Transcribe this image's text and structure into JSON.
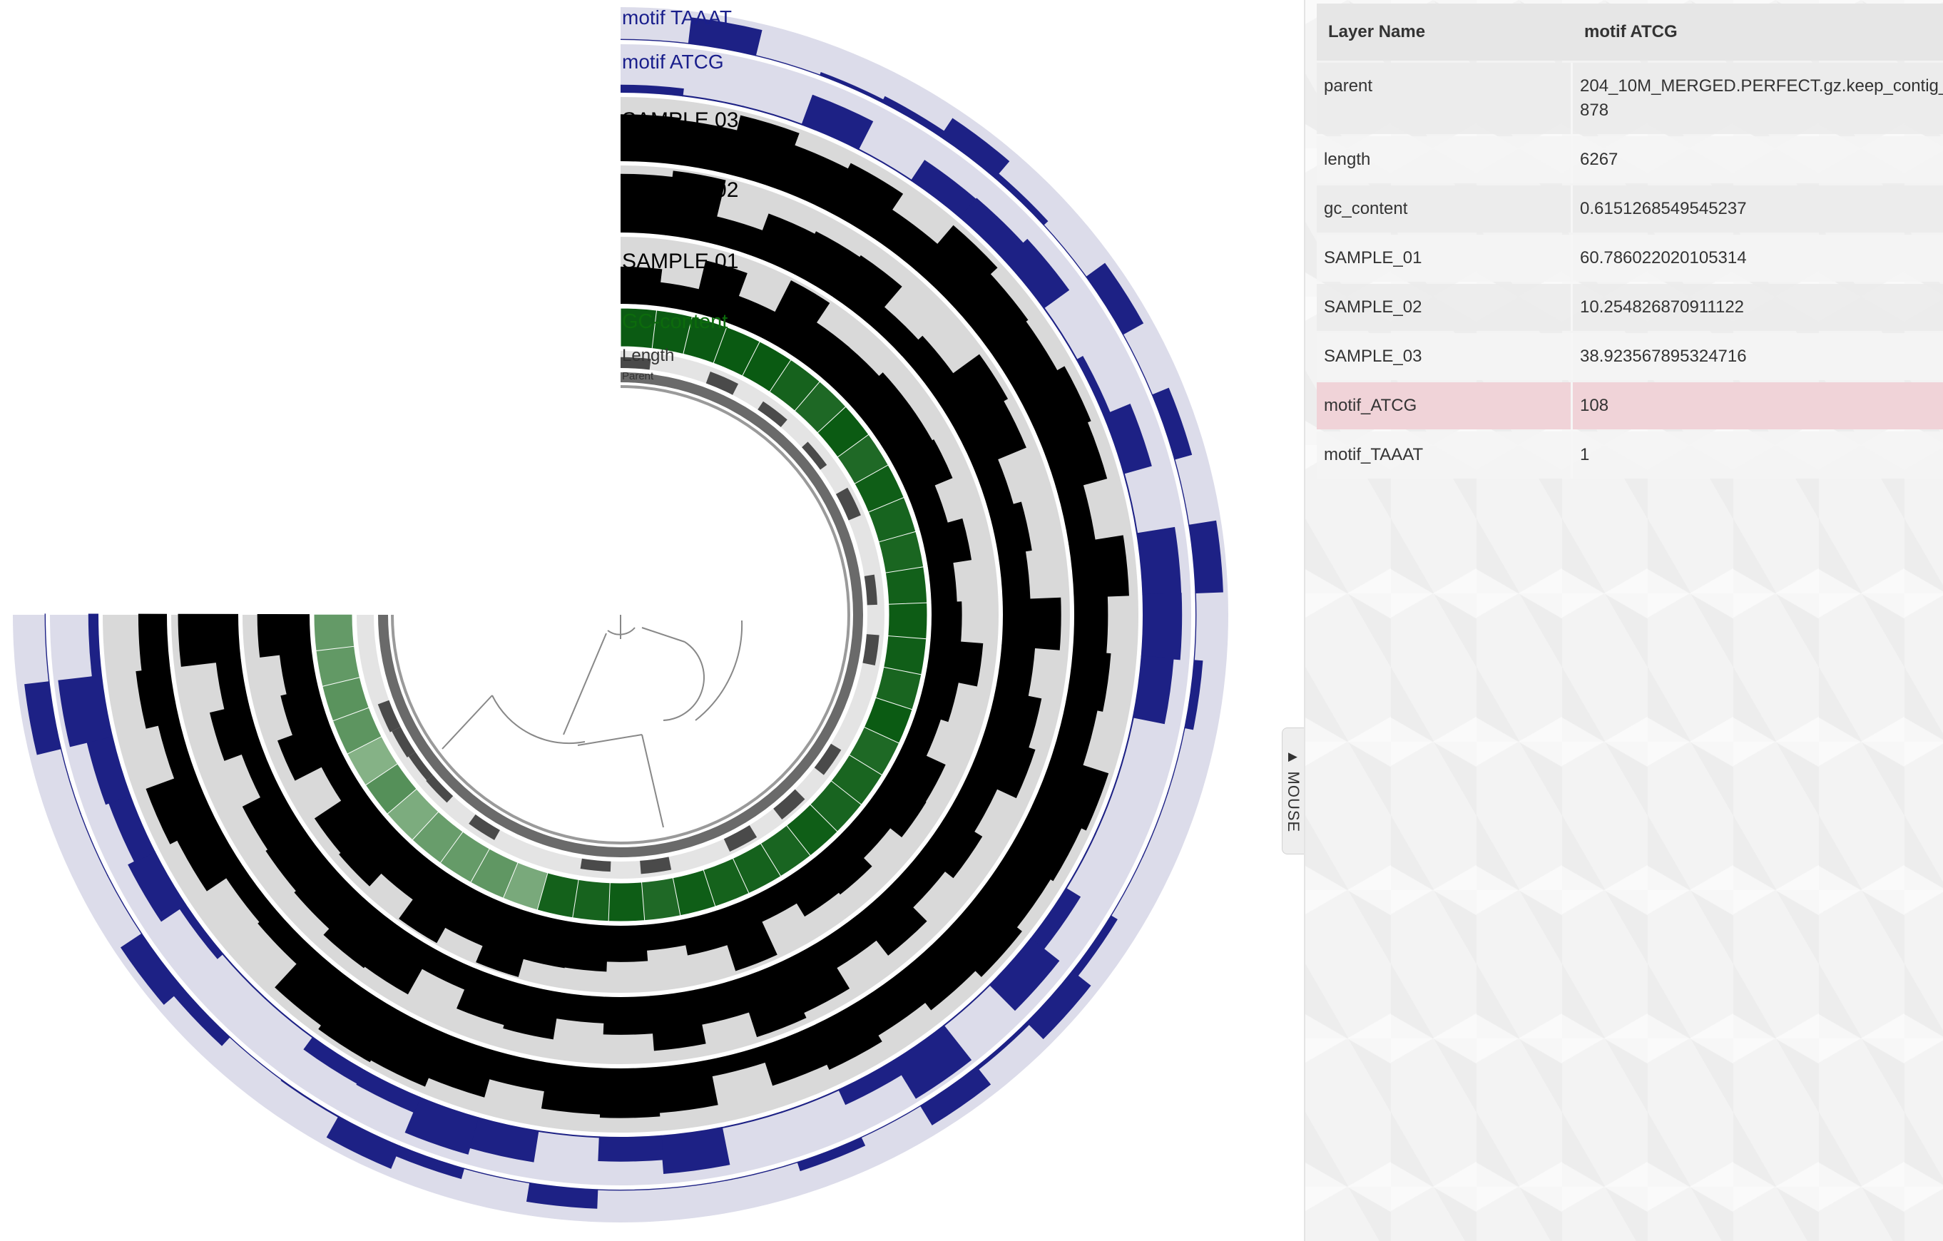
{
  "layers": {
    "motif_taaat": "motif TAAAT",
    "motif_atcg": "motif ATCG",
    "sample_03": "SAMPLE 03",
    "sample_02": "SAMPLE 02",
    "sample_01": "SAMPLE 01",
    "gc_content": "GC-content",
    "length": "Length",
    "parent": "Parent"
  },
  "colors": {
    "motif_bg": "#dcdcea",
    "motif_bar": "#1d2185",
    "motif_label": "#1a1f8c",
    "sample_bg": "#d9d9d9",
    "sample_bar": "#000000",
    "gc_dark": "#0a5a12",
    "gc_light": "#7fb07f",
    "gc_label": "#0c6b0c",
    "length_bar": "#4a4a4a",
    "parent_ring": "#6a6a6a",
    "highlight_row": "#f0d3d8",
    "tree_line": "#888888"
  },
  "panel": {
    "col_layer_name": "Layer Name",
    "col_value": "motif ATCG",
    "rows": [
      {
        "key": "parent",
        "value": "204_10M_MERGED.PERFECT.gz.keep_contig_878"
      },
      {
        "key": "length",
        "value": "6267"
      },
      {
        "key": "gc_content",
        "value": "0.6151268549545237"
      },
      {
        "key": "SAMPLE_01",
        "value": "60.786022020105314"
      },
      {
        "key": "SAMPLE_02",
        "value": "10.254826870911122"
      },
      {
        "key": "SAMPLE_03",
        "value": "38.923567895324716"
      },
      {
        "key": "motif_ATCG",
        "value": "108",
        "highlight": true
      },
      {
        "key": "motif_TAAAT",
        "value": "1"
      }
    ]
  },
  "mouse_toggle": {
    "label": "MOUSE",
    "icon": "triangle-up-icon"
  }
}
